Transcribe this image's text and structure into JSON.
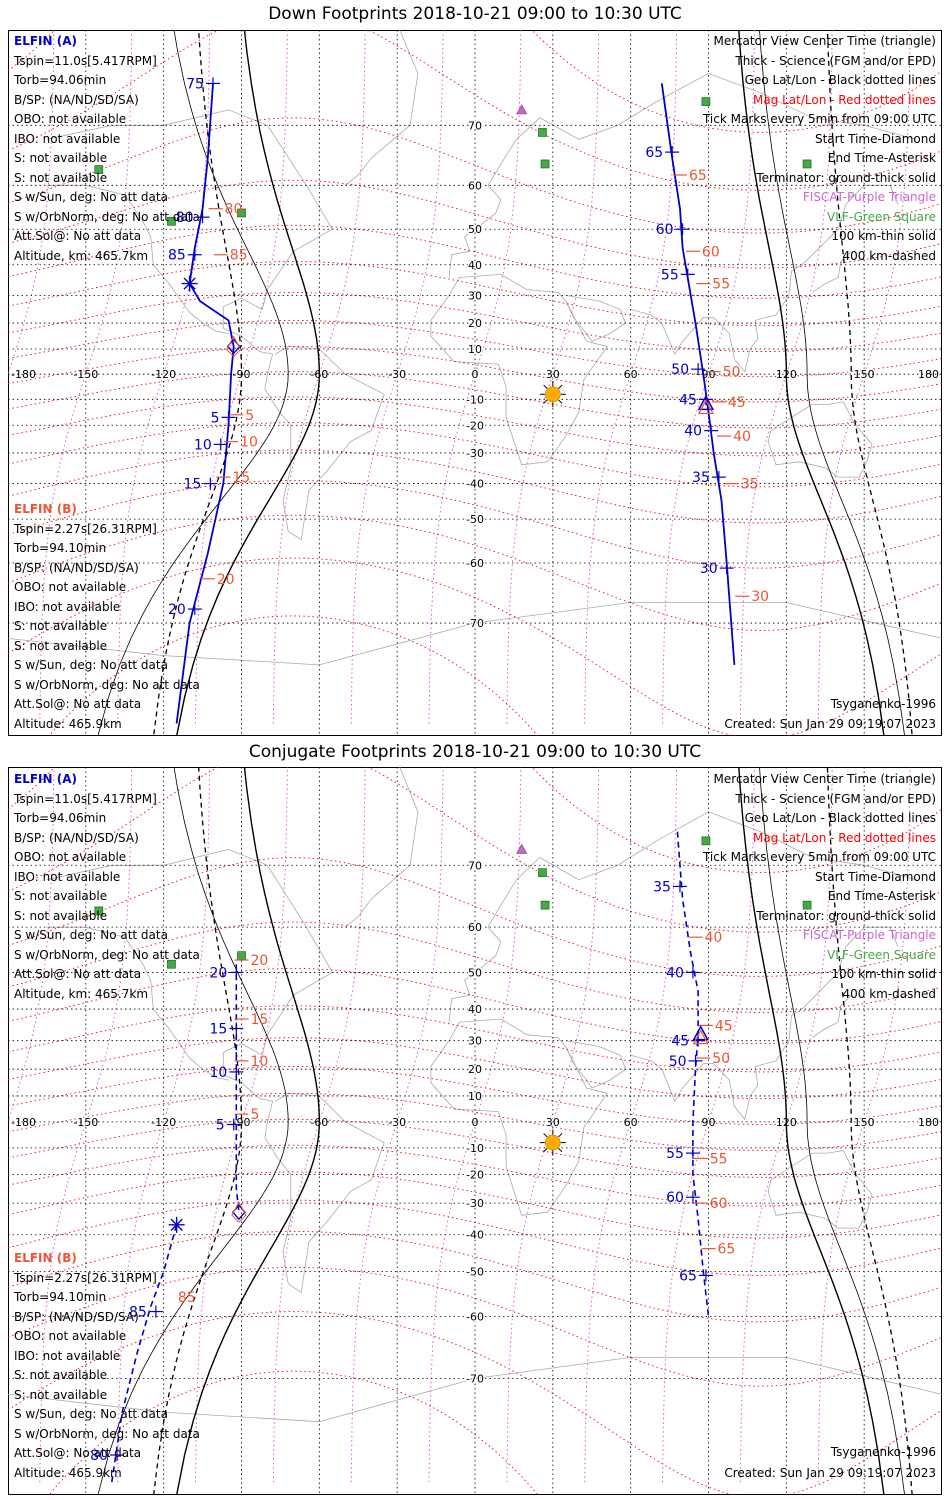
{
  "panels": [
    {
      "title": "Down Footprints 2018-10-21 09:00 to 10:30 UTC",
      "elfin_a": {
        "name": "ELFIN (A)",
        "lines": [
          "Tspin=11.0s[5.417RPM]",
          "Torb=94.06min",
          "B/SP: (NA/ND/SD/SA)",
          "OBO: not available",
          "IBO: not available",
          "S: not available",
          "S: not available",
          "S w/Sun, deg: No att data",
          "S w/OrbNorm, deg: No att data",
          "Att.Sol@: No att data",
          "Altitude, km: 465.7km"
        ]
      },
      "elfin_b": {
        "name": "ELFIN (B)",
        "lines": [
          "Tspin=2.27s[26.31RPM]",
          "Torb=94.10min",
          "B/SP: (NA/ND/SD/SA)",
          "OBO: not available",
          "IBO: not available",
          "S: not available",
          "S: not available",
          "S w/Sun, deg: No att data",
          "S w/OrbNorm, deg: No att data",
          "Att.Sol@: No att data",
          "Altitude: 465.9km"
        ]
      },
      "legend": [
        "Mercator View Center Time (triangle)",
        "Thick - Science (FGM and/or EPD)",
        "Geo Lat/Lon - Black dotted lines",
        "Mag Lat/Lon - Red dotted lines",
        "Tick Marks every 5min from 09:00 UTC",
        "Start Time-Diamond",
        "End Time-Asterisk",
        "Terminator: ground-thick solid",
        "FISCAT-Purple Triangle",
        "VLF-Green Square",
        "100 km-thin solid",
        "400 km-dashed"
      ],
      "model": "Tsyganenko-1996",
      "created": "Created: Sun Jan 29 09:19:07 2023",
      "track_a": {
        "style": "solid",
        "points": [
          [
            -101,
            75
          ],
          [
            -103,
            65
          ],
          [
            -105,
            55
          ],
          [
            -108,
            45
          ],
          [
            -110,
            34
          ],
          [
            -106,
            28
          ],
          [
            -95,
            21
          ],
          [
            -93,
            11
          ],
          [
            -94,
            0
          ],
          [
            -95,
            -20
          ],
          [
            -97,
            -40
          ],
          [
            -103,
            -58
          ],
          [
            -110,
            -70
          ],
          [
            -115,
            -80
          ]
        ],
        "ticks": [
          {
            "label": "75",
            "lon": -101,
            "lat": 75
          },
          {
            "label": "80",
            "lon": -105,
            "lat": 53
          },
          {
            "label": "85",
            "lon": -108,
            "lat": 43
          },
          {
            "label": "5",
            "lon": -95,
            "lat": -17
          },
          {
            "label": "10",
            "lon": -98,
            "lat": -27
          },
          {
            "label": "15",
            "lon": -102,
            "lat": -40
          },
          {
            "label": "20",
            "lon": -108,
            "lat": -68
          }
        ],
        "start": [
          -93,
          11
        ],
        "end": [
          -110,
          34
        ]
      },
      "track_b": {
        "points": [
          [
            -100,
            75
          ],
          [
            -98,
            60
          ],
          [
            -95,
            40
          ],
          [
            -93,
            21
          ],
          [
            -92,
            10
          ],
          [
            -93,
            -10
          ],
          [
            -97,
            -35
          ],
          [
            -103,
            -55
          ],
          [
            -108,
            -68
          ]
        ],
        "ticks": [
          {
            "label": "80",
            "lon": -100,
            "lat": 55
          },
          {
            "label": "85",
            "lon": -98,
            "lat": 43
          },
          {
            "label": "5",
            "lon": -92,
            "lat": -16
          },
          {
            "label": "10",
            "lon": -94,
            "lat": -26
          },
          {
            "label": "15",
            "lon": -97,
            "lat": -38
          },
          {
            "label": "20",
            "lon": -103,
            "lat": -63
          }
        ]
      },
      "track_c": {
        "points": [
          [
            72,
            75
          ],
          [
            76,
            65
          ],
          [
            79,
            55
          ],
          [
            80,
            45
          ],
          [
            85,
            20
          ],
          [
            88,
            0
          ],
          [
            90,
            -15
          ],
          [
            92,
            -30
          ],
          [
            95,
            -45
          ],
          [
            97,
            -60
          ],
          [
            100,
            -75
          ]
        ],
        "ticks": [
          {
            "label": "65",
            "lon": 76,
            "lat": 66
          },
          {
            "label": "60",
            "lon": 80,
            "lat": 50
          },
          {
            "label": "55",
            "lon": 82,
            "lat": 37
          },
          {
            "label": "50",
            "lon": 86,
            "lat": 2
          },
          {
            "label": "45",
            "lon": 89,
            "lat": -10
          },
          {
            "label": "40",
            "lon": 91,
            "lat": -22
          },
          {
            "label": "35",
            "lon": 94,
            "lat": -38
          },
          {
            "label": "30",
            "lon": 97,
            "lat": -61
          }
        ]
      },
      "track_d": {
        "points": [
          [
            72,
            75
          ],
          [
            78,
            62
          ],
          [
            82,
            50
          ],
          [
            86,
            38
          ],
          [
            90,
            15
          ],
          [
            92,
            -5
          ],
          [
            94,
            -18
          ],
          [
            96,
            -35
          ],
          [
            99,
            -50
          ],
          [
            102,
            -65
          ],
          [
            105,
            -78
          ]
        ],
        "ticks": [
          {
            "label": "65",
            "lon": 79,
            "lat": 62
          },
          {
            "label": "60",
            "lon": 84,
            "lat": 44
          },
          {
            "label": "55",
            "lon": 88,
            "lat": 34
          },
          {
            "label": "50",
            "lon": 92,
            "lat": 1
          },
          {
            "label": "45",
            "lon": 94,
            "lat": -11
          },
          {
            "label": "40",
            "lon": 96,
            "lat": -24
          },
          {
            "label": "35",
            "lon": 99,
            "lat": -40
          },
          {
            "label": "30",
            "lon": 103,
            "lat": -66
          }
        ]
      },
      "center_triangle": [
        89,
        -12
      ],
      "start_diamond_c": [
        88,
        -13
      ]
    },
    {
      "title": "Conjugate Footprints 2018-10-21 09:00 to 10:30 UTC",
      "elfin_a": {
        "name": "ELFIN (A)",
        "lines": [
          "Tspin=11.0s[5.417RPM]",
          "Torb=94.06min",
          "B/SP: (NA/ND/SD/SA)",
          "OBO: not available",
          "IBO: not available",
          "S: not available",
          "S: not available",
          "S w/Sun, deg: No att data",
          "S w/OrbNorm, deg: No att data",
          "Att.Sol@: No att data",
          "Altitude, km: 465.7km"
        ]
      },
      "elfin_b": {
        "name": "ELFIN (B)",
        "lines": [
          "Tspin=2.27s[26.31RPM]",
          "Torb=94.10min",
          "B/SP: (NA/ND/SD/SA)",
          "OBO: not available",
          "IBO: not available",
          "S: not available",
          "S: not available",
          "S w/Sun, deg: No att data",
          "S w/OrbNorm, deg: No att data",
          "Att.Sol@: No att data",
          "Altitude: 465.9km"
        ]
      },
      "legend": [
        "Mercator View Center Time (triangle)",
        "Thick - Science (FGM and/or EPD)",
        "Geo Lat/Lon - Black dotted lines",
        "Mag Lat/Lon - Red dotted lines",
        "Tick Marks every 5min from 09:00 UTC",
        "Start Time-Diamond",
        "End Time-Asterisk",
        "Terminator: ground-thick solid",
        "FISCAT-Purple Triangle",
        "VLF-Green Square",
        "100 km-thin solid",
        "400 km-dashed"
      ],
      "model": "Tsyganenko-1996",
      "created": "Created: Sun Jan 29 09:19:07 2023",
      "track_a": {
        "style": "dashed",
        "points": [
          [
            -92,
            52
          ],
          [
            -92,
            40
          ],
          [
            -92,
            28
          ],
          [
            -92,
            10
          ],
          [
            -92,
            -5
          ],
          [
            -92,
            -25
          ],
          [
            -91,
            -33
          ]
        ],
        "ticks": [
          {
            "label": "20",
            "lon": -92,
            "lat": 50
          },
          {
            "label": "15",
            "lon": -92,
            "lat": 34
          },
          {
            "label": "10",
            "lon": -92,
            "lat": 19
          },
          {
            "label": "5",
            "lon": -93,
            "lat": -1
          }
        ],
        "start": [
          -91,
          -33
        ],
        "end": [
          -115,
          -37
        ]
      },
      "track_b": {
        "points": [
          [
            -91,
            52
          ],
          [
            -90,
            40
          ],
          [
            -90,
            28
          ],
          [
            -90,
            15
          ],
          [
            -91,
            0
          ],
          [
            -91,
            -20
          ],
          [
            -90,
            -35
          ]
        ],
        "ticks": [
          {
            "label": "20",
            "lon": -90,
            "lat": 53
          },
          {
            "label": "15",
            "lon": -90,
            "lat": 37
          },
          {
            "label": "10",
            "lon": -90,
            "lat": 23
          },
          {
            "label": "5",
            "lon": -90,
            "lat": 3
          }
        ]
      },
      "track_e": {
        "points": [
          [
            -115,
            -37
          ],
          [
            -120,
            -50
          ],
          [
            -125,
            -58
          ],
          [
            -130,
            -66
          ],
          [
            -136,
            -74
          ],
          [
            -140,
            -80
          ]
        ],
        "ticks": [
          {
            "label": "85",
            "lon": -123,
            "lat": -59
          },
          {
            "label": "80",
            "lon": -138,
            "lat": -78
          }
        ]
      },
      "track_f": {
        "points": [
          [
            -115,
            -37
          ],
          [
            -118,
            -48
          ],
          [
            -121,
            -57
          ],
          [
            -124,
            -63
          ]
        ],
        "ticks": [
          {
            "label": "85",
            "lon": -118,
            "lat": -56
          }
        ]
      },
      "track_c": {
        "points": [
          [
            78,
            74
          ],
          [
            80,
            65
          ],
          [
            83,
            55
          ],
          [
            86,
            45
          ],
          [
            86,
            32
          ],
          [
            85,
            20
          ],
          [
            84,
            0
          ],
          [
            84,
            -20
          ],
          [
            86,
            -35
          ],
          [
            88,
            -50
          ],
          [
            90,
            -60
          ]
        ],
        "ticks": [
          {
            "label": "35",
            "lon": 79,
            "lat": 67
          },
          {
            "label": "40",
            "lon": 84,
            "lat": 50
          },
          {
            "label": "45",
            "lon": 86,
            "lat": 30
          },
          {
            "label": "50",
            "lon": 85,
            "lat": 23
          },
          {
            "label": "55",
            "lon": 84,
            "lat": -12
          },
          {
            "label": "60",
            "lon": 84,
            "lat": -28
          },
          {
            "label": "65",
            "lon": 89,
            "lat": -51
          }
        ]
      },
      "track_d": {
        "points": [
          [
            78,
            74
          ],
          [
            82,
            65
          ],
          [
            85,
            55
          ],
          [
            88,
            45
          ],
          [
            88,
            32
          ],
          [
            87,
            22
          ],
          [
            86,
            0
          ],
          [
            86,
            -20
          ],
          [
            88,
            -35
          ],
          [
            92,
            -55
          ]
        ],
        "ticks": [
          {
            "label": "40",
            "lon": 85,
            "lat": 58
          },
          {
            "label": "45",
            "lon": 89,
            "lat": 35
          },
          {
            "label": "50",
            "lon": 88,
            "lat": 24
          },
          {
            "label": "55",
            "lon": 87,
            "lat": -14
          },
          {
            "label": "60",
            "lon": 87,
            "lat": -30
          },
          {
            "label": "65",
            "lon": 90,
            "lat": -44
          }
        ]
      },
      "center_triangle": [
        87,
        32
      ],
      "start_diamond_c": [
        86,
        30
      ]
    }
  ],
  "map": {
    "lon_labels": [
      "-180",
      "-150",
      "-120",
      "-90",
      "-60",
      "-30",
      "0",
      "30",
      "60",
      "90",
      "120",
      "150",
      "180"
    ],
    "lon_values": [
      -180,
      -150,
      -120,
      -90,
      -60,
      -30,
      0,
      30,
      60,
      90,
      120,
      150,
      180
    ],
    "lat_labels": [
      "70",
      "60",
      "50",
      "40",
      "30",
      "20",
      "10",
      "-10",
      "-20",
      "-30",
      "-40",
      "-50",
      "-60",
      "-70"
    ],
    "lat_values": [
      70,
      60,
      50,
      40,
      30,
      20,
      10,
      -10,
      -20,
      -30,
      -40,
      -50,
      -60,
      -70
    ],
    "sun": [
      30,
      -8
    ],
    "fiscat": [
      [
        15,
        83
      ],
      [
        18,
        72
      ]
    ],
    "vlf": [
      [
        -145,
        63
      ],
      [
        -117,
        52
      ],
      [
        -90,
        54
      ],
      [
        26,
        69
      ],
      [
        27,
        64
      ],
      [
        89,
        73
      ],
      [
        128,
        64
      ]
    ],
    "colors": {
      "elfin_a": "#0000cc",
      "elfin_b": "#ee5533",
      "geo_grid": "#000000",
      "mag_grid": "#ff0000",
      "fiscat": "#cc66cc",
      "vlf": "#44aa44",
      "sun": "#ffaa00"
    }
  }
}
